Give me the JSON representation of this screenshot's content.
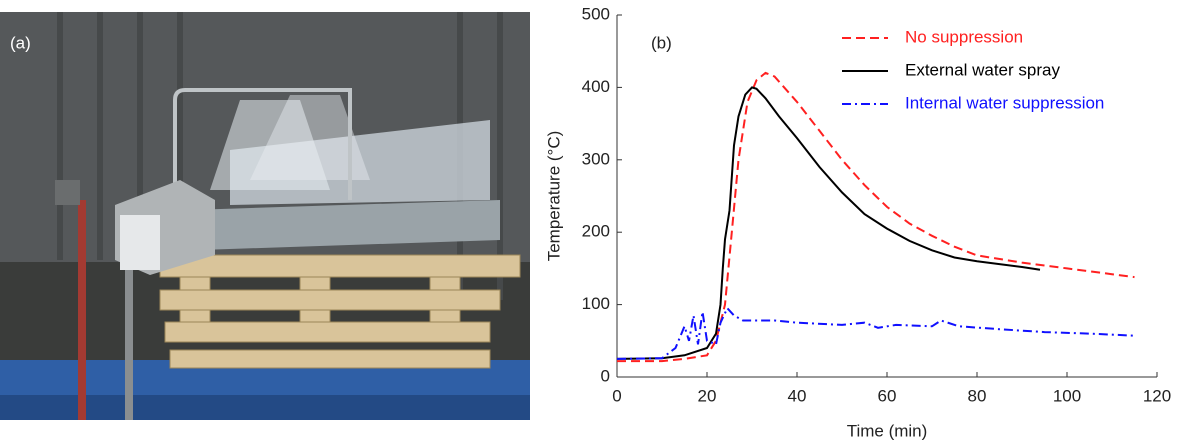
{
  "photo": {
    "label": "(a)"
  },
  "chart_data": {
    "type": "line",
    "panel_label": "(b)",
    "x_label": "Time (min)",
    "y_label": "Temperature (°C)",
    "xlim": [
      0,
      120
    ],
    "xticks": [
      0,
      20,
      40,
      60,
      80,
      100,
      120
    ],
    "ylim": [
      0,
      500
    ],
    "yticks": [
      0,
      100,
      200,
      300,
      400,
      500
    ],
    "grid": false,
    "legend": "top-right",
    "series": [
      {
        "name": "No suppression",
        "color": "#ff2020",
        "dash": "dashed",
        "x": [
          0,
          10,
          15,
          20,
          22,
          24,
          25.5,
          27,
          29,
          31,
          33,
          35,
          40,
          45,
          50,
          55,
          60,
          65,
          70,
          75,
          80,
          90,
          100,
          110,
          115
        ],
        "values": [
          22,
          22,
          25,
          30,
          50,
          100,
          200,
          300,
          380,
          410,
          420,
          415,
          380,
          340,
          300,
          265,
          235,
          212,
          195,
          180,
          168,
          158,
          150,
          142,
          138
        ]
      },
      {
        "name": "External water spray",
        "color": "#000000",
        "dash": "solid",
        "x": [
          0,
          10,
          15,
          20,
          22,
          23,
          23.5,
          24,
          25,
          26,
          27,
          28.5,
          30,
          31,
          33,
          36,
          40,
          45,
          50,
          55,
          60,
          65,
          70,
          75,
          80,
          90,
          94
        ],
        "values": [
          25,
          26,
          30,
          40,
          60,
          100,
          150,
          190,
          230,
          320,
          360,
          390,
          400,
          398,
          385,
          360,
          330,
          290,
          255,
          225,
          205,
          188,
          175,
          165,
          160,
          152,
          148
        ]
      },
      {
        "name": "Internal water suppression",
        "color": "#1010ff",
        "dash": "dashdot",
        "x": [
          0,
          10,
          13,
          15,
          16,
          17,
          18,
          19,
          20,
          22,
          23,
          24.5,
          26,
          28,
          35,
          40,
          50,
          55,
          58,
          62,
          70,
          72,
          76,
          85,
          95,
          105,
          115
        ],
        "values": [
          25,
          26,
          40,
          70,
          50,
          85,
          45,
          90,
          50,
          45,
          75,
          95,
          85,
          78,
          78,
          75,
          72,
          75,
          68,
          72,
          70,
          78,
          70,
          66,
          62,
          60,
          57
        ]
      }
    ]
  }
}
